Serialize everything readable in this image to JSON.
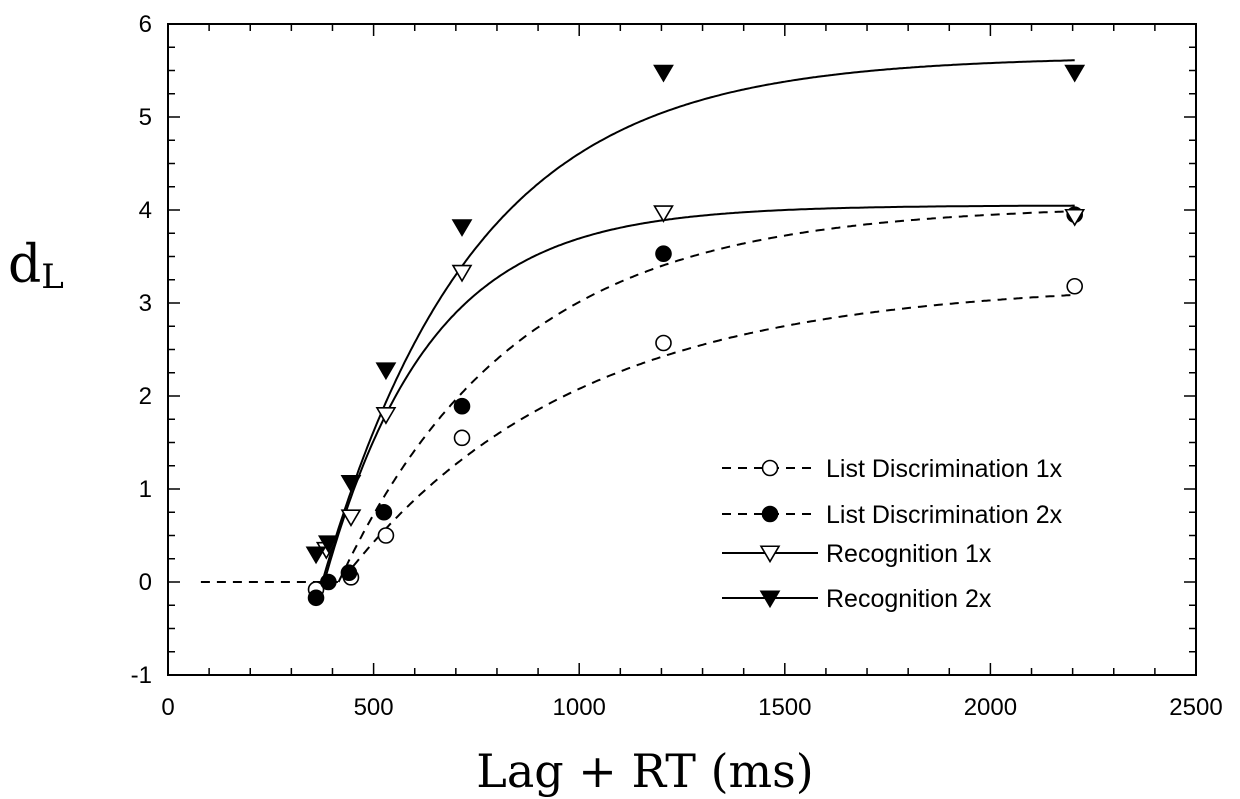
{
  "chart_data": {
    "type": "line",
    "title": "",
    "xlabel": "Lag + RT (ms)",
    "ylabel_main": "d",
    "ylabel_sub": "L",
    "xlim": [
      0,
      2500
    ],
    "ylim": [
      -1,
      6
    ],
    "x_ticks": [
      0,
      500,
      1000,
      1500,
      2000,
      2500
    ],
    "x_tick_labels": [
      "0",
      "500",
      "1000",
      "1500",
      "2000",
      "2500"
    ],
    "y_ticks": [
      -1,
      0,
      1,
      2,
      3,
      4,
      5,
      6
    ],
    "y_tick_labels": [
      "-1",
      "0",
      "1",
      "2",
      "3",
      "4",
      "5",
      "6"
    ],
    "grid": false,
    "legend_position": "bottom-right",
    "series": [
      {
        "name": "List Discrimination 1x",
        "marker": "open-circle",
        "line": "dashed",
        "x": [
          360,
          445,
          530,
          715,
          1205,
          2205
        ],
        "y": [
          -0.08,
          0.05,
          0.5,
          1.55,
          2.57,
          3.18
        ],
        "fit": {
          "t0": 420,
          "asymptote": 3.22,
          "tau": 560
        }
      },
      {
        "name": "List Discrimination 2x",
        "marker": "filled-circle",
        "line": "dashed",
        "x": [
          360,
          390,
          440,
          525,
          715,
          1205,
          2205
        ],
        "y": [
          -0.17,
          0.0,
          0.1,
          0.75,
          1.89,
          3.53,
          3.95
        ],
        "fit": {
          "t0": 415,
          "asymptote": 4.05,
          "tau": 430
        }
      },
      {
        "name": "Recognition 1x",
        "marker": "open-triangle-down",
        "line": "solid",
        "x": [
          385,
          445,
          530,
          715,
          1205,
          2205
        ],
        "y": [
          0.35,
          0.7,
          1.8,
          3.33,
          3.97,
          3.93
        ],
        "fit": {
          "t0": 380,
          "asymptote": 4.05,
          "tau": 255
        }
      },
      {
        "name": "Recognition 2x",
        "marker": "filled-triangle-down",
        "line": "solid",
        "x": [
          360,
          390,
          445,
          530,
          715,
          1205,
          2205
        ],
        "y": [
          0.3,
          0.42,
          1.07,
          2.28,
          3.82,
          5.48,
          5.48
        ],
        "fit": {
          "t0": 375,
          "asymptote": 5.65,
          "tau": 370
        }
      }
    ],
    "baseline_start_x": 80
  }
}
